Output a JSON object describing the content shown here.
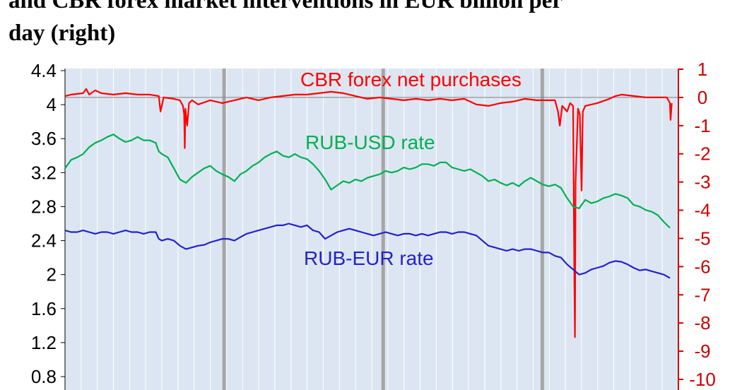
{
  "title": {
    "line1": "and CBR forex market interventions in EUR billion per",
    "line2": "day (right)"
  },
  "chart_data": {
    "type": "line",
    "left_axis": {
      "ticks": [
        "4.4",
        "4",
        "3.6",
        "3.2",
        "2.8",
        "2.4",
        "2",
        "1.6",
        "1.2",
        "0.8"
      ],
      "tick_values": [
        4.4,
        4.0,
        3.6,
        3.2,
        2.8,
        2.4,
        2.0,
        1.6,
        1.2,
        0.8
      ],
      "range": [
        0.6,
        4.4
      ]
    },
    "right_axis": {
      "ticks": [
        "1",
        "0",
        "-1",
        "-2",
        "-3",
        "-4",
        "-5",
        "-6",
        "-7",
        "-8",
        "-9",
        "-10"
      ],
      "tick_values": [
        1,
        0,
        -1,
        -2,
        -3,
        -4,
        -5,
        -6,
        -7,
        -8,
        -9,
        -10
      ],
      "range": [
        -10.5,
        1
      ],
      "color": "#cc0000"
    },
    "x_range": [
      0,
      100
    ],
    "grid": true,
    "background": "#dce6f2",
    "series": [
      {
        "name": "CBR forex net purchases",
        "axis": "right",
        "color": "#ff0000",
        "points": [
          [
            0,
            0.05
          ],
          [
            1,
            0.1
          ],
          [
            3,
            0.15
          ],
          [
            3.5,
            0.3
          ],
          [
            4,
            0.1
          ],
          [
            5,
            0.25
          ],
          [
            6,
            0.15
          ],
          [
            8,
            0.1
          ],
          [
            10,
            0.15
          ],
          [
            12,
            0.1
          ],
          [
            14,
            0.1
          ],
          [
            15.5,
            0.05
          ],
          [
            15.8,
            -0.5
          ],
          [
            16.3,
            0.0
          ],
          [
            18,
            -0.05
          ],
          [
            19,
            -0.1
          ],
          [
            19.5,
            -0.3
          ],
          [
            19.7,
            -0.6
          ],
          [
            19.8,
            -1.8
          ],
          [
            19.9,
            -0.4
          ],
          [
            20.2,
            -1.0
          ],
          [
            20.5,
            -0.2
          ],
          [
            21,
            -0.1
          ],
          [
            22,
            -0.25
          ],
          [
            24,
            -0.1
          ],
          [
            26,
            -0.2
          ],
          [
            28,
            -0.1
          ],
          [
            30,
            0.0
          ],
          [
            32,
            -0.1
          ],
          [
            34,
            0.0
          ],
          [
            36,
            0.05
          ],
          [
            38,
            0.1
          ],
          [
            40,
            0.1
          ],
          [
            42,
            0.15
          ],
          [
            44,
            0.2
          ],
          [
            46,
            0.15
          ],
          [
            48,
            0.05
          ],
          [
            50,
            -0.05
          ],
          [
            52,
            0.0
          ],
          [
            54,
            -0.05
          ],
          [
            56,
            -0.1
          ],
          [
            58,
            -0.05
          ],
          [
            60,
            -0.1
          ],
          [
            62,
            -0.05
          ],
          [
            64,
            -0.1
          ],
          [
            66,
            -0.05
          ],
          [
            68,
            -0.25
          ],
          [
            70,
            -0.3
          ],
          [
            72,
            -0.2
          ],
          [
            74,
            -0.15
          ],
          [
            76,
            -0.05
          ],
          [
            78,
            -0.1
          ],
          [
            80,
            -0.1
          ],
          [
            81,
            -0.1
          ],
          [
            81.5,
            -0.5
          ],
          [
            81.8,
            -1.0
          ],
          [
            82.2,
            -0.3
          ],
          [
            83,
            -0.5
          ],
          [
            83.5,
            -0.2
          ],
          [
            84,
            -0.3
          ],
          [
            84.2,
            -6.5
          ],
          [
            84.3,
            -8.5
          ],
          [
            84.4,
            -3.0
          ],
          [
            84.8,
            -0.4
          ],
          [
            85.1,
            -0.6
          ],
          [
            85.4,
            -3.3
          ],
          [
            85.6,
            -0.5
          ],
          [
            86,
            -0.3
          ],
          [
            88,
            -0.2
          ],
          [
            90,
            -0.05
          ],
          [
            91,
            0.05
          ],
          [
            92,
            0.1
          ],
          [
            94,
            0.05
          ],
          [
            96,
            0.0
          ],
          [
            98,
            0.0
          ],
          [
            99.5,
            0.0
          ],
          [
            100,
            -0.2
          ],
          [
            100.1,
            -0.8
          ],
          [
            100.3,
            -0.2
          ]
        ]
      },
      {
        "name": "RUB-USD rate",
        "axis": "left",
        "color": "#00b050",
        "points": [
          [
            0,
            3.25
          ],
          [
            1,
            3.35
          ],
          [
            2,
            3.38
          ],
          [
            3,
            3.42
          ],
          [
            4,
            3.5
          ],
          [
            5,
            3.55
          ],
          [
            6,
            3.58
          ],
          [
            7,
            3.62
          ],
          [
            8,
            3.65
          ],
          [
            9,
            3.6
          ],
          [
            10,
            3.56
          ],
          [
            11,
            3.58
          ],
          [
            12,
            3.62
          ],
          [
            13,
            3.58
          ],
          [
            14,
            3.58
          ],
          [
            15,
            3.55
          ],
          [
            15.5,
            3.45
          ],
          [
            16,
            3.42
          ],
          [
            17,
            3.38
          ],
          [
            18,
            3.25
          ],
          [
            19,
            3.12
          ],
          [
            20,
            3.08
          ],
          [
            21,
            3.15
          ],
          [
            22,
            3.2
          ],
          [
            23,
            3.25
          ],
          [
            24,
            3.28
          ],
          [
            25,
            3.22
          ],
          [
            26,
            3.18
          ],
          [
            27,
            3.15
          ],
          [
            28,
            3.1
          ],
          [
            29,
            3.18
          ],
          [
            30,
            3.22
          ],
          [
            31,
            3.28
          ],
          [
            32,
            3.32
          ],
          [
            33,
            3.38
          ],
          [
            34,
            3.42
          ],
          [
            35,
            3.45
          ],
          [
            36,
            3.4
          ],
          [
            37,
            3.38
          ],
          [
            38,
            3.42
          ],
          [
            39,
            3.38
          ],
          [
            40,
            3.36
          ],
          [
            41,
            3.3
          ],
          [
            42,
            3.22
          ],
          [
            43,
            3.12
          ],
          [
            44,
            3.0
          ],
          [
            45,
            3.05
          ],
          [
            46,
            3.1
          ],
          [
            47,
            3.08
          ],
          [
            48,
            3.12
          ],
          [
            49,
            3.1
          ],
          [
            50,
            3.14
          ],
          [
            51,
            3.16
          ],
          [
            52,
            3.18
          ],
          [
            53,
            3.22
          ],
          [
            54,
            3.2
          ],
          [
            55,
            3.22
          ],
          [
            56,
            3.26
          ],
          [
            57,
            3.24
          ],
          [
            58,
            3.26
          ],
          [
            59,
            3.3
          ],
          [
            60,
            3.3
          ],
          [
            61,
            3.28
          ],
          [
            62,
            3.32
          ],
          [
            63,
            3.32
          ],
          [
            64,
            3.26
          ],
          [
            65,
            3.24
          ],
          [
            66,
            3.22
          ],
          [
            67,
            3.24
          ],
          [
            68,
            3.2
          ],
          [
            69,
            3.16
          ],
          [
            70,
            3.1
          ],
          [
            71,
            3.12
          ],
          [
            72,
            3.08
          ],
          [
            73,
            3.05
          ],
          [
            74,
            3.08
          ],
          [
            75,
            3.04
          ],
          [
            76,
            3.1
          ],
          [
            77,
            3.14
          ],
          [
            78,
            3.1
          ],
          [
            79,
            3.06
          ],
          [
            80,
            3.04
          ],
          [
            81,
            3.06
          ],
          [
            82,
            3.02
          ],
          [
            83,
            2.9
          ],
          [
            84,
            2.8
          ],
          [
            85,
            2.78
          ],
          [
            86,
            2.88
          ],
          [
            87,
            2.84
          ],
          [
            88,
            2.86
          ],
          [
            89,
            2.9
          ],
          [
            90,
            2.92
          ],
          [
            91,
            2.95
          ],
          [
            92,
            2.93
          ],
          [
            93,
            2.9
          ],
          [
            94,
            2.82
          ],
          [
            95,
            2.8
          ],
          [
            96,
            2.76
          ],
          [
            97,
            2.74
          ],
          [
            98,
            2.7
          ],
          [
            99,
            2.62
          ],
          [
            100,
            2.55
          ]
        ]
      },
      {
        "name": "RUB-EUR rate",
        "axis": "left",
        "color": "#2222cc",
        "points": [
          [
            0,
            2.52
          ],
          [
            1,
            2.5
          ],
          [
            2,
            2.5
          ],
          [
            3,
            2.52
          ],
          [
            4,
            2.5
          ],
          [
            5,
            2.48
          ],
          [
            6,
            2.5
          ],
          [
            7,
            2.5
          ],
          [
            8,
            2.48
          ],
          [
            9,
            2.5
          ],
          [
            10,
            2.52
          ],
          [
            11,
            2.5
          ],
          [
            12,
            2.5
          ],
          [
            13,
            2.48
          ],
          [
            14,
            2.5
          ],
          [
            15,
            2.5
          ],
          [
            15.5,
            2.42
          ],
          [
            16,
            2.4
          ],
          [
            17,
            2.42
          ],
          [
            18,
            2.4
          ],
          [
            19,
            2.34
          ],
          [
            20,
            2.3
          ],
          [
            21,
            2.32
          ],
          [
            22,
            2.34
          ],
          [
            23,
            2.35
          ],
          [
            24,
            2.38
          ],
          [
            25,
            2.4
          ],
          [
            26,
            2.42
          ],
          [
            27,
            2.42
          ],
          [
            28,
            2.4
          ],
          [
            29,
            2.44
          ],
          [
            30,
            2.48
          ],
          [
            31,
            2.5
          ],
          [
            32,
            2.52
          ],
          [
            33,
            2.54
          ],
          [
            34,
            2.56
          ],
          [
            35,
            2.58
          ],
          [
            36,
            2.58
          ],
          [
            37,
            2.6
          ],
          [
            38,
            2.58
          ],
          [
            39,
            2.56
          ],
          [
            40,
            2.58
          ],
          [
            41,
            2.52
          ],
          [
            42,
            2.5
          ],
          [
            43,
            2.42
          ],
          [
            44,
            2.46
          ],
          [
            45,
            2.5
          ],
          [
            46,
            2.52
          ],
          [
            47,
            2.54
          ],
          [
            48,
            2.52
          ],
          [
            49,
            2.5
          ],
          [
            50,
            2.48
          ],
          [
            51,
            2.46
          ],
          [
            52,
            2.48
          ],
          [
            53,
            2.5
          ],
          [
            54,
            2.48
          ],
          [
            55,
            2.46
          ],
          [
            56,
            2.48
          ],
          [
            57,
            2.48
          ],
          [
            58,
            2.46
          ],
          [
            59,
            2.48
          ],
          [
            60,
            2.46
          ],
          [
            61,
            2.48
          ],
          [
            62,
            2.5
          ],
          [
            63,
            2.5
          ],
          [
            64,
            2.48
          ],
          [
            65,
            2.5
          ],
          [
            66,
            2.5
          ],
          [
            67,
            2.48
          ],
          [
            68,
            2.46
          ],
          [
            69,
            2.4
          ],
          [
            70,
            2.34
          ],
          [
            71,
            2.32
          ],
          [
            72,
            2.3
          ],
          [
            73,
            2.28
          ],
          [
            74,
            2.3
          ],
          [
            75,
            2.28
          ],
          [
            76,
            2.3
          ],
          [
            77,
            2.3
          ],
          [
            78,
            2.28
          ],
          [
            79,
            2.26
          ],
          [
            80,
            2.26
          ],
          [
            81,
            2.22
          ],
          [
            82,
            2.2
          ],
          [
            83,
            2.12
          ],
          [
            84,
            2.06
          ],
          [
            85,
            2.0
          ],
          [
            86,
            2.02
          ],
          [
            87,
            2.06
          ],
          [
            88,
            2.08
          ],
          [
            89,
            2.1
          ],
          [
            90,
            2.14
          ],
          [
            91,
            2.16
          ],
          [
            92,
            2.15
          ],
          [
            93,
            2.12
          ],
          [
            94,
            2.08
          ],
          [
            95,
            2.05
          ],
          [
            96,
            2.06
          ],
          [
            97,
            2.04
          ],
          [
            98,
            2.02
          ],
          [
            99,
            2.0
          ],
          [
            100,
            1.96
          ]
        ]
      }
    ],
    "labels": {
      "cbr": "CBR forex net purchases",
      "usd": "RUB-USD rate",
      "eur": "RUB-EUR rate"
    },
    "vertical_markers_x": [
      26.3,
      52.6,
      78.9
    ]
  }
}
